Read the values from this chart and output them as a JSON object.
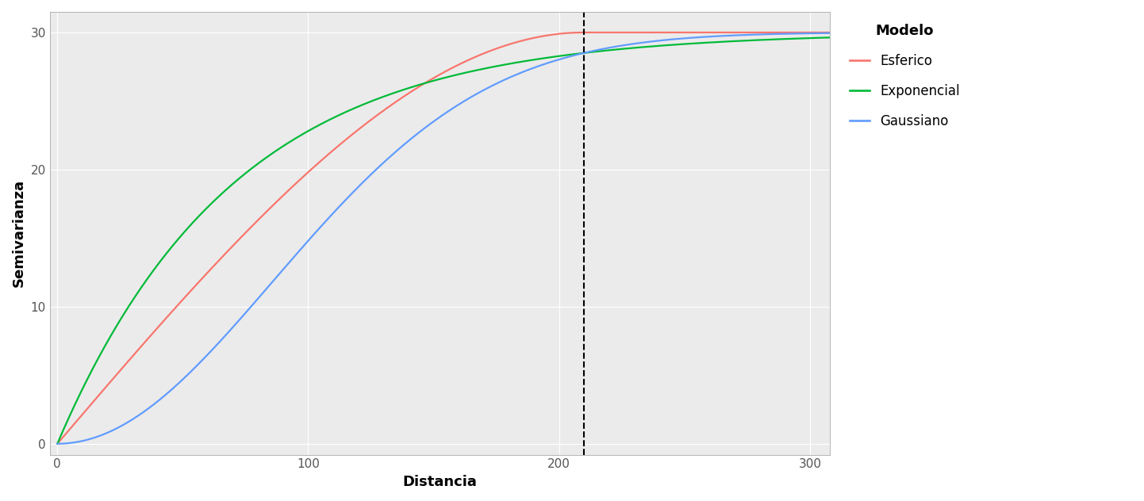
{
  "C0": 0,
  "C1": 30,
  "a": 210,
  "x_min": -3,
  "x_max": 308,
  "y_min": -0.8,
  "y_max": 31.5,
  "x_ticks": [
    0,
    100,
    200,
    300
  ],
  "y_ticks": [
    0,
    10,
    20,
    30
  ],
  "dashed_x": 210,
  "xlabel": "Distancia",
  "ylabel": "Semivarianza",
  "legend_title": "Modelo",
  "legend_entries": [
    "Esferico",
    "Exponencial",
    "Gaussiano"
  ],
  "color_esferico": "#F8766D",
  "color_exponencial": "#00BA38",
  "color_gaussiano": "#619CFF",
  "line_width": 1.6,
  "background_color": "#FFFFFF",
  "panel_background": "#EBEBEB",
  "grid_color": "#FFFFFF",
  "axis_label_fontsize": 13,
  "tick_fontsize": 11,
  "legend_title_fontsize": 13,
  "legend_fontsize": 12
}
